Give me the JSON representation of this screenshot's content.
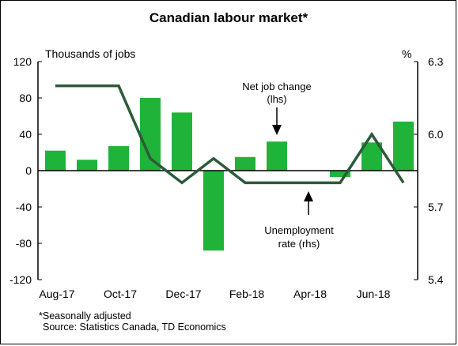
{
  "chart_data": {
    "type": "bar",
    "title": "Canadian labour market*",
    "left_axis_label": "Thousands of jobs",
    "right_axis_label": "%",
    "left_ylim": [
      -120,
      120
    ],
    "left_ticks": [
      "120",
      "80",
      "40",
      "0",
      "-40",
      "-80",
      "-120"
    ],
    "right_ylim": [
      5.4,
      6.3
    ],
    "right_ticks": [
      "6.3",
      "6.0",
      "5.7",
      "5.4"
    ],
    "x_tick_labels": [
      "Aug-17",
      "Oct-17",
      "Dec-17",
      "Feb-18",
      "Apr-18",
      "Jun-18"
    ],
    "grid": false,
    "series": [
      {
        "name": "Net job change (lhs)",
        "type": "bar",
        "color": "#20B33A",
        "values": [
          22,
          12,
          27,
          80,
          64,
          -88,
          15,
          32,
          0,
          -7,
          31,
          54
        ]
      },
      {
        "name": "Unemployment rate (rhs)",
        "type": "line",
        "color": "#2D5A3A",
        "values": [
          6.2,
          6.2,
          6.2,
          5.9,
          5.8,
          5.9,
          5.8,
          5.8,
          5.8,
          5.8,
          6.0,
          5.8
        ]
      }
    ],
    "annotations": {
      "bars_line1": "Net job change",
      "bars_line2": "(lhs)",
      "line_line1": "Unemployment",
      "line_line2": "rate (rhs)"
    },
    "footnote1": "*Seasonally adjusted",
    "footnote2": "Source: Statistics Canada,  TD Economics"
  }
}
